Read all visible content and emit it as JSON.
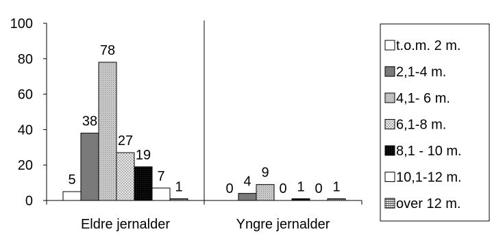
{
  "chart_data": {
    "type": "bar",
    "categories": [
      "Eldre jernalder",
      "Yngre jernalder"
    ],
    "series": [
      {
        "name": "t.o.m. 2 m.",
        "values": [
          5,
          0
        ],
        "color": "#ffffff",
        "pattern": "none"
      },
      {
        "name": "2,1-4 m.",
        "values": [
          38,
          4
        ],
        "color": "#7a7a7a",
        "pattern": "none"
      },
      {
        "name": "4,1- 6 m.",
        "values": [
          78,
          9
        ],
        "color": "#c8c8c8",
        "pattern": "fine-dots"
      },
      {
        "name": "6,1-8 m.",
        "values": [
          27,
          0
        ],
        "color": "#dedede",
        "pattern": "dots"
      },
      {
        "name": "8,1 - 10 m.",
        "values": [
          19,
          1
        ],
        "color": "#000000",
        "pattern": "grid"
      },
      {
        "name": "10,1-12 m.",
        "values": [
          7,
          0
        ],
        "color": "#ffffff",
        "pattern": "none"
      },
      {
        "name": "over 12 m.",
        "values": [
          1,
          1
        ],
        "color": "#9a9a9a",
        "pattern": "grid"
      }
    ],
    "y_ticks": [
      "0",
      "20",
      "40",
      "60",
      "80",
      "100"
    ],
    "ylim": [
      0,
      100
    ],
    "grid": false,
    "legend_position": "right",
    "category_separator": true
  }
}
